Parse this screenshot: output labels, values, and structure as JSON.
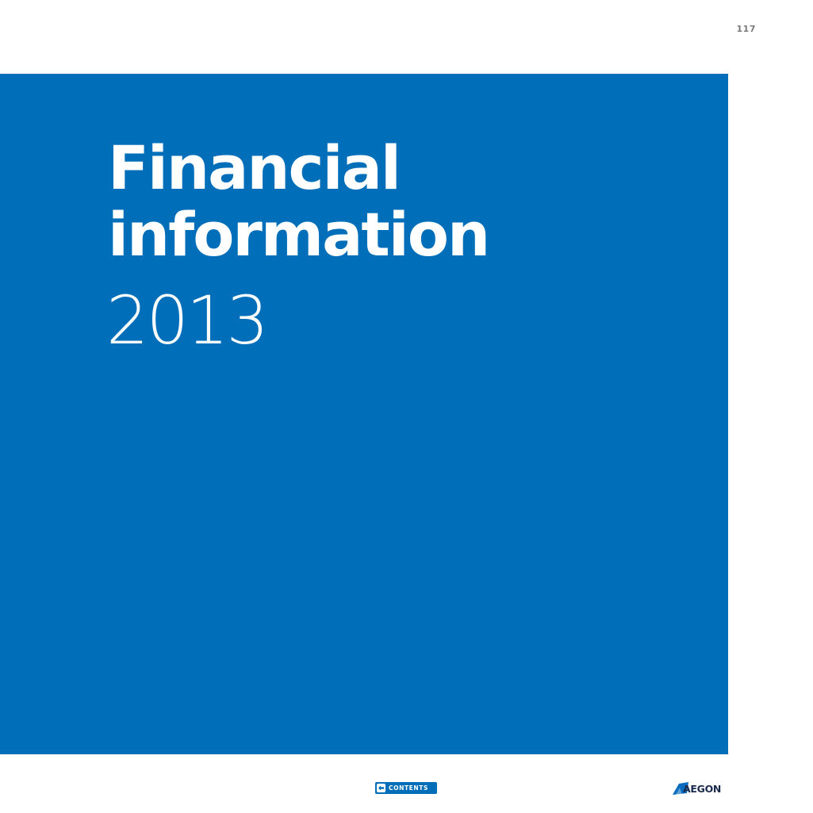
{
  "page": {
    "number": "117"
  },
  "cover": {
    "title_line1": "Financial",
    "title_line2": "information",
    "year": "2013",
    "panel_color": "#006eb9"
  },
  "footer": {
    "contents_label": "CONTENTS",
    "contents_icon": "back-arrow-icon",
    "logo_text": "AEGON",
    "logo_color": "#1a2a4a"
  }
}
